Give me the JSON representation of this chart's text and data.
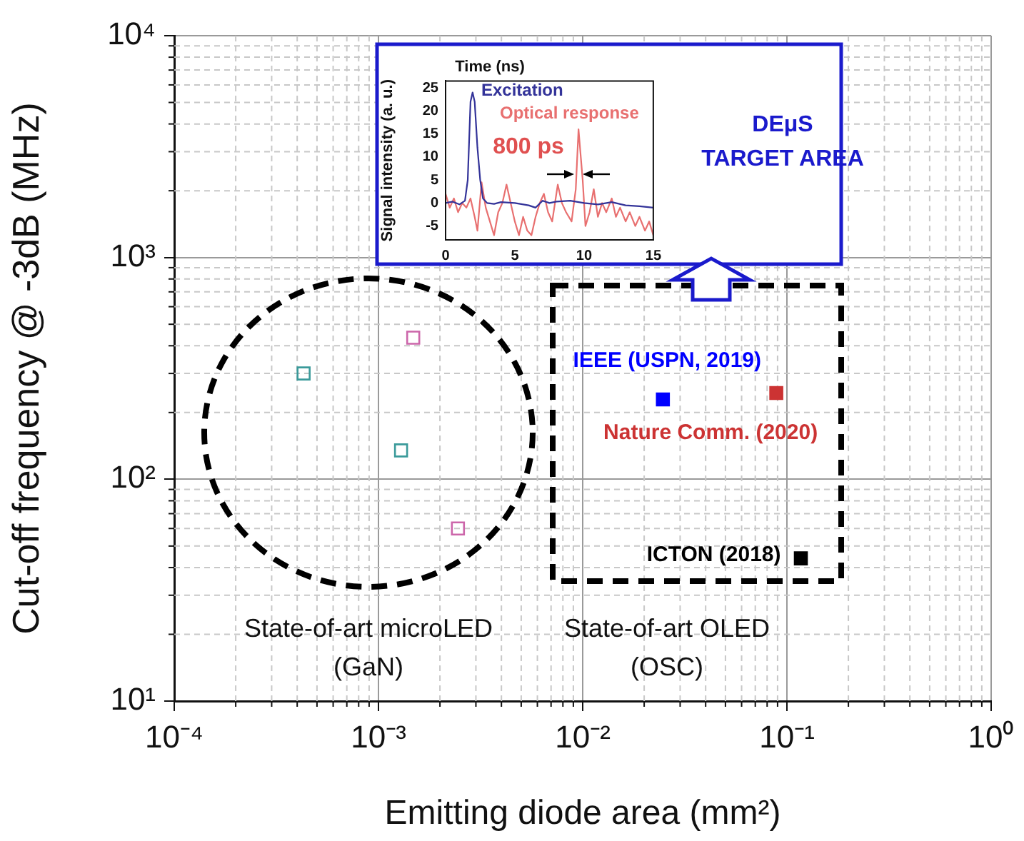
{
  "chart_data": [
    {
      "type": "scatter",
      "xlabel": "Emitting diode area (mm²)",
      "ylabel": "Cut-off frequency @ -3dB (MHz)",
      "log": "xy",
      "xlim": [
        0.0001,
        1
      ],
      "ylim": [
        10,
        10000
      ],
      "xticks": [
        {
          "value": 0.0001,
          "label": "10⁻⁴"
        },
        {
          "value": 0.001,
          "label": "10⁻³"
        },
        {
          "value": 0.01,
          "label": "10⁻²"
        },
        {
          "value": 0.1,
          "label": "10⁻¹"
        },
        {
          "value": 1,
          "label": "10⁰"
        }
      ],
      "yticks": [
        {
          "value": 10,
          "label": "10¹"
        },
        {
          "value": 100,
          "label": "10²"
        },
        {
          "value": 1000,
          "label": "10³"
        },
        {
          "value": 10000,
          "label": "10⁴"
        }
      ],
      "grid": true,
      "marker": "square",
      "series": [
        {
          "color": "#3a9a9a",
          "x": [
            0.00043,
            0.00129
          ],
          "values": [
            300,
            135
          ]
        },
        {
          "color": "#cc66aa",
          "x": [
            0.00148,
            0.00245
          ],
          "values": [
            435,
            60
          ]
        },
        {
          "name": "IEEE (USPN, 2019)",
          "color": "#0000ff",
          "x": [
            0.0247
          ],
          "values": [
            229
          ]
        },
        {
          "name": "Nature Comm. (2020)",
          "color": "#cc3333",
          "x": [
            0.0887
          ],
          "values": [
            245
          ]
        },
        {
          "name": "ICTON (2018)",
          "color": "#000000",
          "x": [
            0.117
          ],
          "values": [
            44
          ]
        }
      ],
      "annotations": [
        "State-of-art microLED\n(GaN)",
        "State-of-art OLED\n(OSC)",
        "DEμS\nTARGET AREA"
      ]
    },
    {
      "type": "line",
      "xlabel": "Time (ns)",
      "ylabel": "Signal intensity (a. u.)",
      "xlim": [
        0,
        15
      ],
      "ylim": [
        -8,
        26.5
      ],
      "xticks": [
        0,
        5,
        10,
        15
      ],
      "yticks": [
        -5,
        0,
        5,
        10,
        15,
        20,
        25
      ],
      "marker": "none",
      "series": [
        {
          "name": "Excitation",
          "color": "#333399",
          "x": [
            0,
            0.5,
            1,
            1.4,
            1.6,
            1.8,
            1.95,
            2.1,
            2.3,
            2.5,
            2.7,
            3,
            3.5,
            4,
            5,
            6,
            6.5,
            7,
            7.5,
            8,
            9,
            10,
            11,
            12,
            13,
            14,
            15
          ],
          "values": [
            0,
            0.3,
            -0.3,
            0.5,
            5,
            22,
            24,
            22,
            12,
            5,
            1,
            0,
            -0.2,
            0.2,
            0,
            -0.5,
            -1,
            0.5,
            0,
            0.3,
            0.5,
            0,
            -0.3,
            0.2,
            -0.5,
            -0.7,
            -1
          ]
        },
        {
          "name": "Optical response",
          "color": "#e87070",
          "x": [
            0,
            0.3,
            0.6,
            0.9,
            1.2,
            1.5,
            1.8,
            2.1,
            2.3,
            2.6,
            2.9,
            3.2,
            3.5,
            3.8,
            4.1,
            4.4,
            4.7,
            5,
            5.3,
            5.6,
            5.9,
            6.2,
            6.5,
            6.8,
            7.1,
            7.4,
            7.7,
            8.1,
            8.4,
            8.7,
            9.1,
            9.4,
            9.6,
            9.9,
            10.1,
            10.4,
            10.7,
            11,
            11.3,
            11.6,
            12,
            12.3,
            12.6,
            13,
            13.3,
            13.7,
            14,
            14.4,
            14.7,
            15
          ],
          "values": [
            2,
            -1,
            1,
            -2,
            0,
            -1,
            1,
            -3,
            -6,
            4.5,
            -1,
            -4,
            -7,
            -2,
            0,
            4,
            0,
            -4,
            -7,
            -3,
            -6,
            -7,
            -3,
            0,
            2,
            -2,
            -4,
            4,
            0,
            -2,
            -4,
            3,
            16,
            5,
            -5,
            -2,
            3,
            -3,
            0,
            -2,
            1,
            -3,
            -1,
            -4,
            -2,
            -5,
            -3,
            -6,
            -4,
            -7
          ]
        }
      ],
      "annotations": [
        "800 ps"
      ]
    }
  ]
}
